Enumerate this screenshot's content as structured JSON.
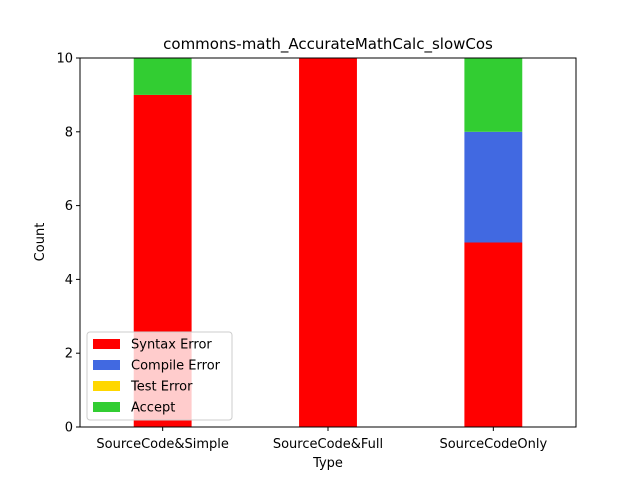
{
  "chart_data": {
    "type": "bar",
    "stacked": true,
    "title": "commons-math_AccurateMathCalc_slowCos",
    "xlabel": "Type",
    "ylabel": "Count",
    "ylim": [
      0,
      10
    ],
    "yticks": [
      "0",
      "2",
      "4",
      "6",
      "8",
      "10"
    ],
    "categories": [
      "SourceCode&Simple",
      "SourceCode&Full",
      "SourceCodeOnly"
    ],
    "series": [
      {
        "name": "Syntax Error",
        "color": "#ff0000",
        "values": [
          9,
          10,
          5
        ]
      },
      {
        "name": "Compile Error",
        "color": "#4169e1",
        "values": [
          0,
          0,
          3
        ]
      },
      {
        "name": "Test Error",
        "color": "#ffd700",
        "values": [
          0,
          0,
          0
        ]
      },
      {
        "name": "Accept",
        "color": "#32cd32",
        "values": [
          1,
          0,
          2
        ]
      }
    ],
    "legend_position": "lower-left",
    "grid": false
  }
}
